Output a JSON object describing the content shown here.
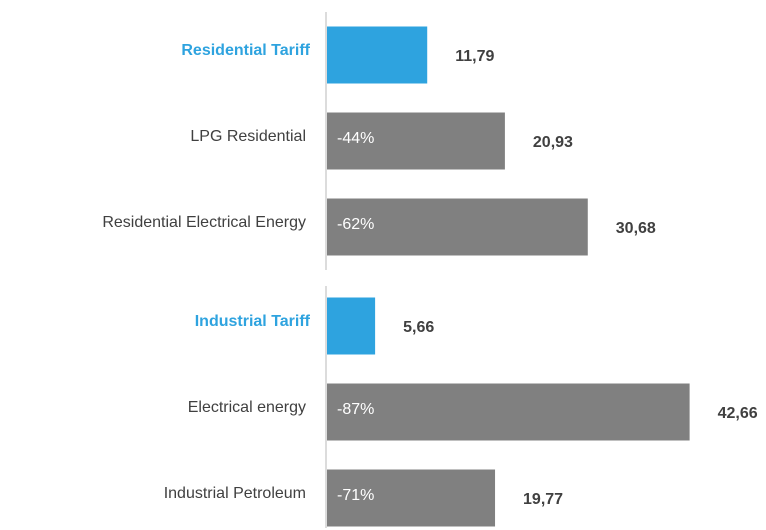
{
  "chart_data": {
    "type": "hbar",
    "categories": [
      "Residential Tariff",
      "LPG Residential",
      "Residential Electrical Energy",
      "Industrial Tariff",
      "Electrical energy",
      "Industrial Petroleum"
    ],
    "values": [
      11.79,
      20.93,
      30.68,
      5.66,
      42.66,
      19.77
    ],
    "value_labels": [
      "11,79",
      "20,93",
      "30,68",
      "5,66",
      "42,66",
      "19,77"
    ],
    "bar_notes": [
      null,
      "-44%",
      "-62%",
      null,
      "-87%",
      "-71%"
    ],
    "colors": [
      "#2ea3df",
      "#808080",
      "#808080",
      "#2ea3df",
      "#808080",
      "#808080"
    ],
    "highlight_color": "#2ea3df",
    "xlim": [
      0,
      50
    ]
  }
}
